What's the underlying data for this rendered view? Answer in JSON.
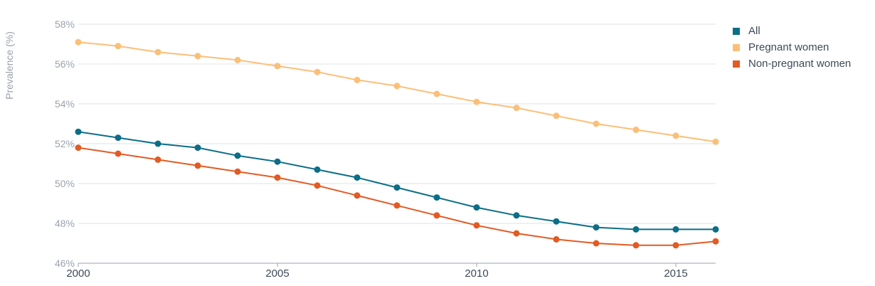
{
  "chart_data": {
    "type": "line",
    "ylabel": "Prevalence (%)",
    "xlabel": "",
    "title": "",
    "ylim": [
      46,
      58
    ],
    "xlim": [
      2000,
      2016
    ],
    "y_ticks": [
      "46%",
      "48%",
      "50%",
      "52%",
      "54%",
      "56%",
      "58%"
    ],
    "x_ticks": [
      "2000",
      "2005",
      "2010",
      "2015"
    ],
    "grid": "horizontal",
    "legend_position": "top-right",
    "x": [
      2000,
      2001,
      2002,
      2003,
      2004,
      2005,
      2006,
      2007,
      2008,
      2009,
      2010,
      2011,
      2012,
      2013,
      2014,
      2015,
      2016
    ],
    "series": [
      {
        "name": "All",
        "color": "#0c6e87",
        "values": [
          52.6,
          52.3,
          52.0,
          51.8,
          51.4,
          51.1,
          50.7,
          50.3,
          49.8,
          49.3,
          48.8,
          48.4,
          48.1,
          47.8,
          47.7,
          47.7,
          47.7
        ]
      },
      {
        "name": "Pregnant women",
        "color": "#fbbf78",
        "values": [
          57.1,
          56.9,
          56.6,
          56.4,
          56.2,
          55.9,
          55.6,
          55.2,
          54.9,
          54.5,
          54.1,
          53.8,
          53.4,
          53.0,
          52.7,
          52.4,
          52.1
        ]
      },
      {
        "name": "Non-pregnant women",
        "color": "#e25b24",
        "values": [
          51.8,
          51.5,
          51.2,
          50.9,
          50.6,
          50.3,
          49.9,
          49.4,
          48.9,
          48.4,
          47.9,
          47.5,
          47.2,
          47.0,
          46.9,
          46.9,
          47.1
        ]
      }
    ]
  }
}
